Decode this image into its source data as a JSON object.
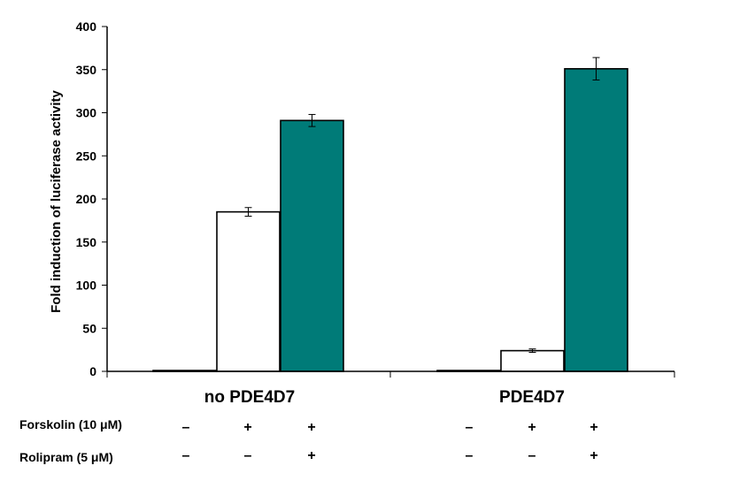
{
  "chart_data": {
    "type": "bar",
    "ylabel": "Fold induction of luciferase activity",
    "ylim": [
      0,
      400
    ],
    "yticks": [
      0,
      50,
      100,
      150,
      200,
      250,
      300,
      350,
      400
    ],
    "groups": [
      "no PDE4D7",
      "PDE4D7"
    ],
    "bars": [
      {
        "group": 0,
        "value": 1,
        "error": 0,
        "color": "#ffffff"
      },
      {
        "group": 0,
        "value": 185,
        "error": 5,
        "color": "#ffffff"
      },
      {
        "group": 0,
        "value": 291,
        "error": 7,
        "color": "#007b78"
      },
      {
        "group": 1,
        "value": 1,
        "error": 0,
        "color": "#ffffff"
      },
      {
        "group": 1,
        "value": 24,
        "error": 2,
        "color": "#ffffff"
      },
      {
        "group": 1,
        "value": 351,
        "error": 13,
        "color": "#007b78"
      }
    ],
    "conditions": [
      {
        "label": "Forskolin (10 μM)",
        "signs": [
          "–",
          "+",
          "+",
          "–",
          "+",
          "+"
        ]
      },
      {
        "label": "Rolipram (5 μM)",
        "signs": [
          "–",
          "–",
          "+",
          "–",
          "–",
          "+"
        ]
      }
    ]
  }
}
